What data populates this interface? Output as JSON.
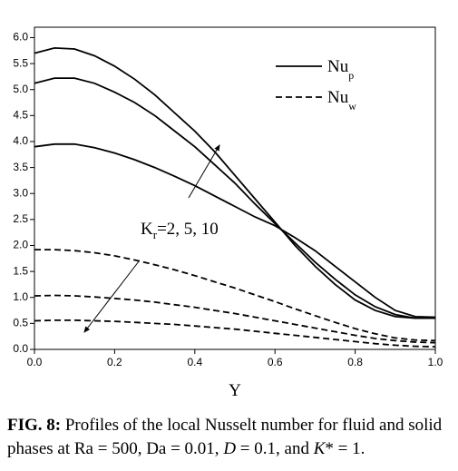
{
  "chart_data": {
    "type": "line",
    "xlabel": "Y",
    "x": [
      0,
      0.05,
      0.1,
      0.15,
      0.2,
      0.25,
      0.3,
      0.35,
      0.4,
      0.45,
      0.5,
      0.55,
      0.6,
      0.65,
      0.7,
      0.75,
      0.8,
      0.85,
      0.9,
      0.95,
      1.0
    ],
    "xlim": [
      0,
      1
    ],
    "xticks": [
      {
        "value": 0,
        "label": "0.0"
      },
      0.2,
      0.4,
      0.6,
      0.8,
      {
        "value": 1,
        "label": "1.0"
      }
    ],
    "ylim": [
      0,
      6.2
    ],
    "yticks": [
      {
        "value": 0,
        "label": "0.0"
      },
      0.5,
      {
        "value": 1,
        "label": "1.0"
      },
      1.5,
      {
        "value": 2,
        "label": "2.0"
      },
      2.5,
      {
        "value": 3,
        "label": "3.0"
      },
      3.5,
      {
        "value": 4,
        "label": "4.0"
      },
      4.5,
      {
        "value": 5,
        "label": "5.0"
      },
      5.5,
      {
        "value": 6,
        "label": "6.0"
      }
    ],
    "series": [
      {
        "name": "Nu",
        "subscript": "p",
        "dash": "solid",
        "color": "#000000",
        "curves": [
          [
            5.7,
            5.8,
            5.78,
            5.65,
            5.45,
            5.2,
            4.9,
            4.55,
            4.2,
            3.8,
            3.35,
            2.9,
            2.45,
            2.0,
            1.6,
            1.25,
            0.95,
            0.75,
            0.63,
            0.6,
            0.6
          ],
          [
            5.12,
            5.22,
            5.22,
            5.12,
            4.95,
            4.75,
            4.5,
            4.2,
            3.9,
            3.55,
            3.2,
            2.8,
            2.42,
            2.05,
            1.68,
            1.35,
            1.05,
            0.82,
            0.67,
            0.6,
            0.6
          ],
          [
            3.9,
            3.95,
            3.95,
            3.88,
            3.78,
            3.65,
            3.5,
            3.33,
            3.15,
            2.95,
            2.75,
            2.55,
            2.38,
            2.15,
            1.9,
            1.6,
            1.3,
            1.0,
            0.75,
            0.63,
            0.62
          ]
        ]
      },
      {
        "name": "Nu",
        "subscript": "w",
        "dash": "dashed",
        "color": "#000000",
        "curves": [
          [
            1.92,
            1.92,
            1.9,
            1.86,
            1.8,
            1.72,
            1.63,
            1.53,
            1.42,
            1.3,
            1.18,
            1.05,
            0.92,
            0.78,
            0.65,
            0.52,
            0.4,
            0.3,
            0.22,
            0.18,
            0.17
          ],
          [
            1.03,
            1.04,
            1.03,
            1.01,
            0.98,
            0.95,
            0.91,
            0.86,
            0.81,
            0.75,
            0.69,
            0.62,
            0.55,
            0.48,
            0.41,
            0.34,
            0.27,
            0.21,
            0.17,
            0.14,
            0.13
          ],
          [
            0.55,
            0.56,
            0.56,
            0.55,
            0.54,
            0.52,
            0.5,
            0.48,
            0.45,
            0.42,
            0.39,
            0.35,
            0.31,
            0.27,
            0.23,
            0.19,
            0.15,
            0.11,
            0.08,
            0.06,
            0.05
          ]
        ]
      }
    ],
    "annotation": {
      "text": "K",
      "subscript": "r",
      "suffix": "=2, 5, 10"
    }
  },
  "caption": {
    "label": "FIG. 8:",
    "segments": [
      {
        "text": " Profiles of the local Nusselt number for fluid and solid phases at Ra = 500, Da = 0.01, ",
        "italic": false
      },
      {
        "text": "D",
        "italic": true
      },
      {
        "text": " = 0.1, and ",
        "italic": false
      },
      {
        "text": "K",
        "italic": true
      },
      {
        "text": "* = 1.",
        "italic": false
      }
    ]
  }
}
